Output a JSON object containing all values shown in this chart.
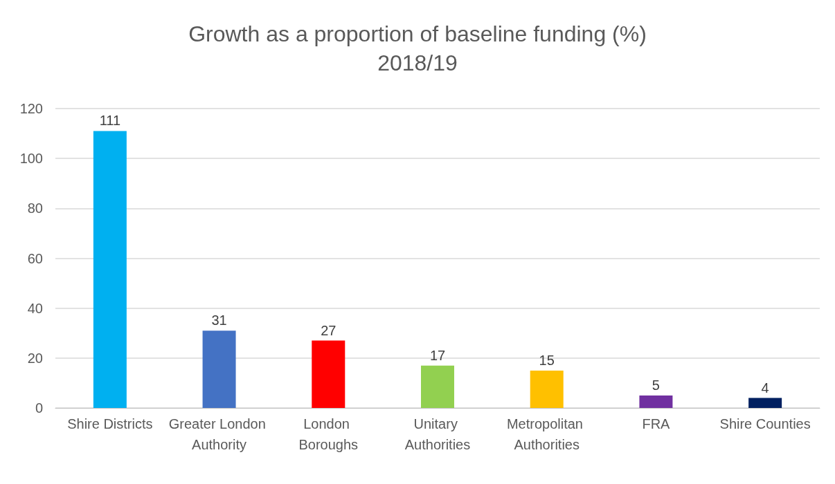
{
  "chart_data": {
    "type": "bar",
    "title": "Growth as a proportion of baseline funding (%)",
    "subtitle": "2018/19",
    "categories": [
      "Shire Districts",
      "Greater London Authority",
      "London Boroughs",
      "Unitary Authorities",
      "Metropolitan Authorities",
      "FRA",
      "Shire Counties"
    ],
    "values": [
      111,
      31,
      27,
      17,
      15,
      5,
      4
    ],
    "colors": [
      "#00b0f0",
      "#4472c4",
      "#ff0000",
      "#92d050",
      "#ffc000",
      "#7030a0",
      "#002060"
    ],
    "ylim": [
      0,
      120
    ],
    "yticks": [
      0,
      20,
      40,
      60,
      80,
      100,
      120
    ],
    "grid": "y",
    "data_labels": true
  }
}
